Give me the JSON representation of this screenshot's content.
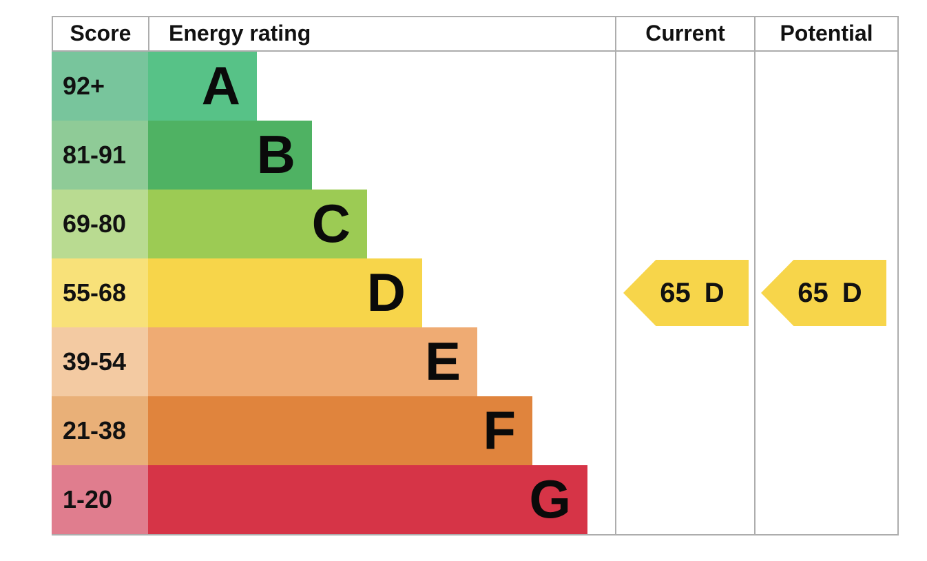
{
  "header": {
    "score_label": "Score",
    "energy_rating_label": "Energy rating",
    "current_label": "Current",
    "potential_label": "Potential"
  },
  "bands": [
    {
      "letter": "A",
      "score_range": "92+",
      "bar_color": "#57c287",
      "score_bg_color": "#78c59c"
    },
    {
      "letter": "B",
      "score_range": "81-91",
      "bar_color": "#4fb263",
      "score_bg_color": "#8fcb97"
    },
    {
      "letter": "C",
      "score_range": "69-80",
      "bar_color": "#9ccb54",
      "score_bg_color": "#b9db91"
    },
    {
      "letter": "D",
      "score_range": "55-68",
      "bar_color": "#f7d54a",
      "score_bg_color": "#f8e179"
    },
    {
      "letter": "E",
      "score_range": "39-54",
      "bar_color": "#efab73",
      "score_bg_color": "#f3caa2"
    },
    {
      "letter": "F",
      "score_range": "21-38",
      "bar_color": "#e0843d",
      "score_bg_color": "#e9b078"
    },
    {
      "letter": "G",
      "score_range": "1-20",
      "bar_color": "#d63447",
      "score_bg_color": "#e07d8e"
    }
  ],
  "markers": {
    "current": {
      "score_text": "65",
      "rating": "D",
      "arrow_color": "#f7d54a"
    },
    "potential": {
      "score_text": "65",
      "rating": "D",
      "arrow_color": "#f7d54a"
    }
  },
  "border_color": "#adadad",
  "chart_data": {
    "type": "bar",
    "title": "Energy rating (EPC band chart)",
    "columns": [
      "Score",
      "Energy rating",
      "Current",
      "Potential"
    ],
    "categories": [
      "A",
      "B",
      "C",
      "D",
      "E",
      "F",
      "G"
    ],
    "score_ranges": [
      "92+",
      "81-91",
      "69-80",
      "55-68",
      "39-54",
      "21-38",
      "1-20"
    ],
    "bar_relative_lengths": [
      1,
      2,
      3,
      4,
      5,
      6,
      7
    ],
    "band_colors": [
      "#57c287",
      "#4fb263",
      "#9ccb54",
      "#f7d54a",
      "#efab73",
      "#e0843d",
      "#d63447"
    ],
    "score_cell_colors": [
      "#78c59c",
      "#8fcb97",
      "#b9db91",
      "#f8e179",
      "#f3caa2",
      "#e9b078",
      "#e07d8e"
    ],
    "current": {
      "score": 65,
      "rating": "D"
    },
    "potential": {
      "score": 65,
      "rating": "D"
    },
    "legend_position": "none",
    "grid": "table-borders"
  }
}
